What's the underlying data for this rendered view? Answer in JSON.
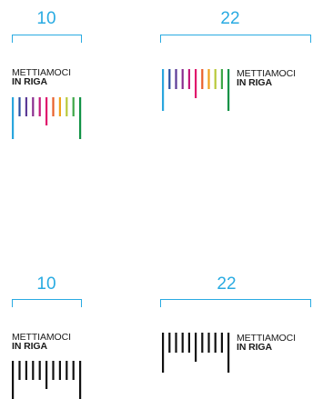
{
  "colors": {
    "accent": "#29abe2",
    "black": "#111111",
    "bar_palette": [
      "#2aa6de",
      "#2b4fa3",
      "#5b3a96",
      "#8a2e8f",
      "#c4197d",
      "#e0156c",
      "#e95f2a",
      "#f0a21c",
      "#b9c93a",
      "#3ea748",
      "#119245"
    ]
  },
  "logo": {
    "line1": "METTIAMOCI",
    "line2": "IN RIGA"
  },
  "variants": [
    {
      "id": "color-10",
      "size": "10",
      "style": "color",
      "bar_count": 11
    },
    {
      "id": "color-22",
      "size": "22",
      "style": "color",
      "bar_count": 11
    },
    {
      "id": "black-10",
      "size": "10",
      "style": "black",
      "bar_count": 11
    },
    {
      "id": "black-22",
      "size": "22",
      "style": "black",
      "bar_count": 11
    }
  ]
}
